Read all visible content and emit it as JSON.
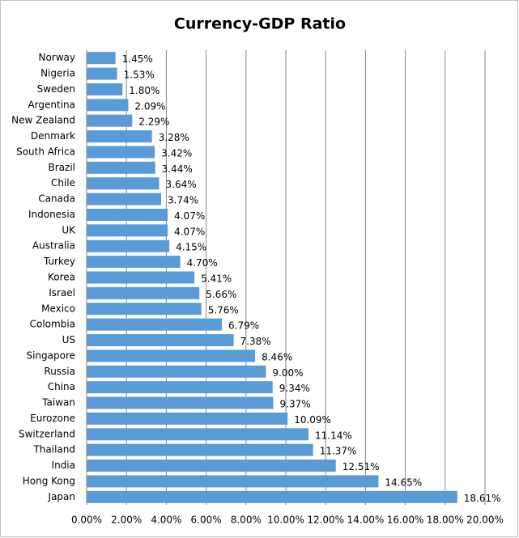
{
  "chart_data": {
    "type": "barh",
    "title": "Currency-GDP Ratio",
    "categories": [
      "Norway",
      "Nigeria",
      "Sweden",
      "Argentina",
      "New Zealand",
      "Denmark",
      "South Africa",
      "Brazil",
      "Chile",
      "Canada",
      "Indonesia",
      "UK",
      "Australia",
      "Turkey",
      "Korea",
      "Israel",
      "Mexico",
      "Colombia",
      "US",
      "Singapore",
      "Russia",
      "China",
      "Taiwan",
      "Eurozone",
      "Switzerland",
      "Thailand",
      "India",
      "Hong Kong",
      "Japan"
    ],
    "values": [
      1.45,
      1.53,
      1.8,
      2.09,
      2.29,
      3.28,
      3.42,
      3.44,
      3.64,
      3.74,
      4.07,
      4.07,
      4.15,
      4.7,
      5.41,
      5.66,
      5.76,
      6.79,
      7.38,
      8.46,
      9.0,
      9.34,
      9.37,
      10.09,
      11.14,
      11.37,
      12.51,
      14.65,
      18.61
    ],
    "value_labels": [
      "1.45%",
      "1.53%",
      "1.80%",
      "2.09%",
      "2.29%",
      "3.28%",
      "3.42%",
      "3.44%",
      "3.64%",
      "3.74%",
      "4.07%",
      "4.07%",
      "4.15%",
      "4.70%",
      "5.41%",
      "5.66%",
      "5.76%",
      "6.79%",
      "7.38%",
      "8.46%",
      "9.00%",
      "9.34%",
      "9.37%",
      "10.09%",
      "11.14%",
      "11.37%",
      "12.51%",
      "14.65%",
      "18.61%"
    ],
    "color": "#5b9bd5",
    "xlim": [
      0,
      20
    ],
    "xticks": [
      {
        "value": 0,
        "label": "0.00%"
      },
      {
        "value": 2,
        "label": "2.00%"
      },
      {
        "value": 4,
        "label": "4.00%"
      },
      {
        "value": 6,
        "label": "6.00%"
      },
      {
        "value": 8,
        "label": "8.00%"
      },
      {
        "value": 10,
        "label": "10.00%"
      },
      {
        "value": 12,
        "label": "12.00%"
      },
      {
        "value": 14,
        "label": "14.00%"
      },
      {
        "value": 16,
        "label": "16.00%"
      },
      {
        "value": 18,
        "label": "18.00%"
      },
      {
        "value": 20,
        "label": "20.00%"
      }
    ],
    "grid": true
  }
}
